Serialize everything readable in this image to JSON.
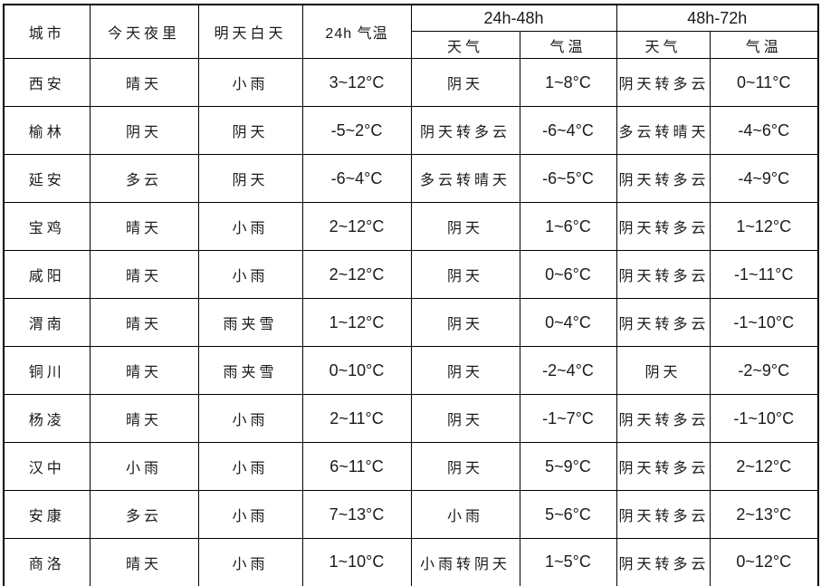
{
  "table": {
    "headers": {
      "city": "城市",
      "tonight": "今天夜里",
      "tomorrow_day": "明天白天",
      "temp_24h": "24h 气温",
      "span_24_48": "24h-48h",
      "span_48_72": "48h-72h",
      "weather": "天气",
      "temp": "气温"
    },
    "rows": [
      {
        "city": "西安",
        "tonight": "晴天",
        "tomorrow": "小雨",
        "temp24": "3~12°C",
        "weather48": "阴天",
        "temp48": "1~8°C",
        "weather72": "阴天转多云",
        "temp72": "0~11°C"
      },
      {
        "city": "榆林",
        "tonight": "阴天",
        "tomorrow": "阴天",
        "temp24": "-5~2°C",
        "weather48": "阴天转多云",
        "temp48": "-6~4°C",
        "weather72": "多云转晴天",
        "temp72": "-4~6°C"
      },
      {
        "city": "延安",
        "tonight": "多云",
        "tomorrow": "阴天",
        "temp24": "-6~4°C",
        "weather48": "多云转晴天",
        "temp48": "-6~5°C",
        "weather72": "阴天转多云",
        "temp72": "-4~9°C"
      },
      {
        "city": "宝鸡",
        "tonight": "晴天",
        "tomorrow": "小雨",
        "temp24": "2~12°C",
        "weather48": "阴天",
        "temp48": "1~6°C",
        "weather72": "阴天转多云",
        "temp72": "1~12°C"
      },
      {
        "city": "咸阳",
        "tonight": "晴天",
        "tomorrow": "小雨",
        "temp24": "2~12°C",
        "weather48": "阴天",
        "temp48": "0~6°C",
        "weather72": "阴天转多云",
        "temp72": "-1~11°C"
      },
      {
        "city": "渭南",
        "tonight": "晴天",
        "tomorrow": "雨夹雪",
        "temp24": "1~12°C",
        "weather48": "阴天",
        "temp48": "0~4°C",
        "weather72": "阴天转多云",
        "temp72": "-1~10°C"
      },
      {
        "city": "铜川",
        "tonight": "晴天",
        "tomorrow": "雨夹雪",
        "temp24": "0~10°C",
        "weather48": "阴天",
        "temp48": "-2~4°C",
        "weather72": "阴天",
        "temp72": "-2~9°C"
      },
      {
        "city": "杨凌",
        "tonight": "晴天",
        "tomorrow": "小雨",
        "temp24": "2~11°C",
        "weather48": "阴天",
        "temp48": "-1~7°C",
        "weather72": "阴天转多云",
        "temp72": "-1~10°C"
      },
      {
        "city": "汉中",
        "tonight": "小雨",
        "tomorrow": "小雨",
        "temp24": "6~11°C",
        "weather48": "阴天",
        "temp48": "5~9°C",
        "weather72": "阴天转多云",
        "temp72": "2~12°C"
      },
      {
        "city": "安康",
        "tonight": "多云",
        "tomorrow": "小雨",
        "temp24": "7~13°C",
        "weather48": "小雨",
        "temp48": "5~6°C",
        "weather72": "阴天转多云",
        "temp72": "2~13°C"
      },
      {
        "city": "商洛",
        "tonight": "晴天",
        "tomorrow": "小雨",
        "temp24": "1~10°C",
        "weather48": "小雨转阴天",
        "temp48": "1~5°C",
        "weather72": "阴天转多云",
        "temp72": "0~12°C"
      }
    ]
  }
}
